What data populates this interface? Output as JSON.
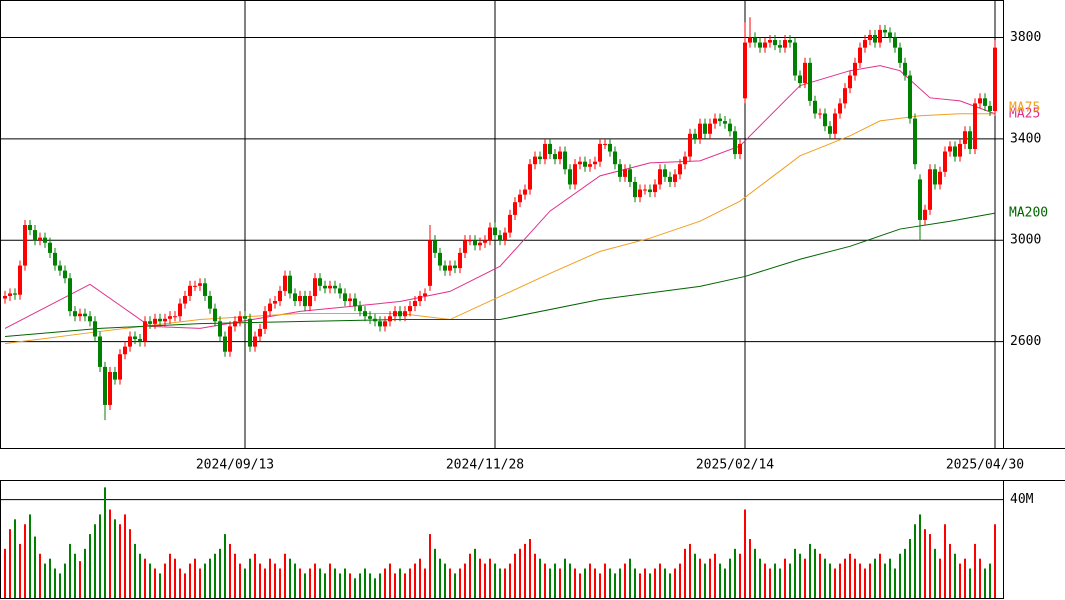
{
  "chart_data": {
    "type": "candlestick",
    "up_color": "#ff0000",
    "down_color": "#008000",
    "ylim": [
      2180,
      3948
    ],
    "yticks": [
      2600,
      3000,
      3400,
      3800
    ],
    "grid": true,
    "xticks": [
      {
        "value": 48,
        "label": "2024/09/13"
      },
      {
        "value": 98,
        "label": "2024/11/28"
      },
      {
        "value": 148,
        "label": "2025/02/14"
      },
      {
        "value": 198,
        "label": "2025/04/30"
      }
    ],
    "open": [
      2770,
      2780,
      2790,
      2785,
      2900,
      3060,
      3040,
      3000,
      3010,
      2990,
      2950,
      2900,
      2880,
      2850,
      2720,
      2700,
      2710,
      2700,
      2680,
      2620,
      2500,
      2350,
      2480,
      2450,
      2550,
      2580,
      2620,
      2610,
      2600,
      2680,
      2670,
      2690,
      2680,
      2690,
      2700,
      2700,
      2750,
      2780,
      2820,
      2820,
      2830,
      2780,
      2730,
      2680,
      2620,
      2560,
      2660,
      2680,
      2700,
      2690,
      2580,
      2620,
      2650,
      2720,
      2750,
      2760,
      2800,
      2860,
      2790,
      2760,
      2780,
      2740,
      2780,
      2850,
      2820,
      2810,
      2820,
      2810,
      2790,
      2760,
      2770,
      2740,
      2720,
      2700,
      2690,
      2680,
      2660,
      2680,
      2700,
      2720,
      2700,
      2720,
      2740,
      2760,
      2780,
      2820,
      3000,
      2950,
      2900,
      2880,
      2900,
      2890,
      2950,
      3000,
      3000,
      2980,
      2990,
      3000,
      3050,
      3020,
      3000,
      3030,
      3100,
      3150,
      3180,
      3200,
      3300,
      3330,
      3320,
      3380,
      3340,
      3320,
      3350,
      3280,
      3220,
      3300,
      3310,
      3290,
      3300,
      3310,
      3380,
      3380,
      3350,
      3300,
      3250,
      3280,
      3230,
      3170,
      3200,
      3200,
      3190,
      3220,
      3280,
      3250,
      3230,
      3260,
      3300,
      3330,
      3420,
      3400,
      3460,
      3420,
      3460,
      3480,
      3470,
      3460,
      3430,
      3340,
      3560,
      3780,
      3800,
      3780,
      3760,
      3780,
      3790,
      3770,
      3760,
      3790,
      3780,
      3650,
      3620,
      3700,
      3550,
      3500,
      3500,
      3450,
      3420,
      3500,
      3540,
      3600,
      3650,
      3700,
      3760,
      3790,
      3810,
      3780,
      3830,
      3820,
      3800,
      3760,
      3700,
      3650,
      3480,
      3240,
      3080,
      3120,
      3280,
      3220,
      3270,
      3350,
      3370,
      3330,
      3380,
      3430,
      3360,
      3540,
      3560,
      3530,
      3510
    ],
    "high": [
      2800,
      2810,
      2810,
      2920,
      3080,
      3080,
      3060,
      3030,
      3030,
      3010,
      2970,
      2920,
      2900,
      2870,
      2740,
      2730,
      2730,
      2720,
      2700,
      2640,
      2520,
      2500,
      2500,
      2570,
      2600,
      2640,
      2640,
      2630,
      2700,
      2700,
      2710,
      2710,
      2710,
      2720,
      2720,
      2770,
      2800,
      2840,
      2840,
      2850,
      2850,
      2800,
      2750,
      2700,
      2640,
      2680,
      2700,
      2720,
      2720,
      2710,
      2640,
      2670,
      2740,
      2770,
      2780,
      2820,
      2880,
      2880,
      2810,
      2800,
      2800,
      2800,
      2870,
      2870,
      2840,
      2840,
      2840,
      2830,
      2810,
      2790,
      2790,
      2760,
      2740,
      2720,
      2710,
      2700,
      2700,
      2720,
      2740,
      2740,
      2740,
      2760,
      2780,
      2800,
      2810,
      3060,
      3020,
      2970,
      2920,
      2920,
      2920,
      2970,
      3020,
      3020,
      3020,
      3010,
      3020,
      3070,
      3070,
      3040,
      3050,
      3120,
      3170,
      3200,
      3220,
      3320,
      3350,
      3350,
      3400,
      3400,
      3360,
      3370,
      3370,
      3300,
      3320,
      3330,
      3330,
      3320,
      3330,
      3400,
      3400,
      3400,
      3370,
      3320,
      3300,
      3300,
      3250,
      3220,
      3220,
      3220,
      3240,
      3300,
      3300,
      3270,
      3280,
      3320,
      3350,
      3440,
      3440,
      3480,
      3480,
      3480,
      3500,
      3500,
      3490,
      3480,
      3450,
      3400,
      3860,
      3880,
      3820,
      3800,
      3800,
      3810,
      3810,
      3790,
      3810,
      3810,
      3800,
      3670,
      3720,
      3720,
      3570,
      3520,
      3520,
      3470,
      3520,
      3560,
      3620,
      3670,
      3720,
      3780,
      3810,
      3830,
      3830,
      3850,
      3850,
      3840,
      3820,
      3780,
      3720,
      3670,
      3500,
      3260,
      3140,
      3300,
      3300,
      3290,
      3370,
      3390,
      3390,
      3400,
      3450,
      3450,
      3560,
      3580,
      3580,
      3550,
      3790
    ],
    "low": [
      2750,
      2760,
      2765,
      2765,
      2880,
      3020,
      2980,
      2980,
      2970,
      2930,
      2880,
      2860,
      2830,
      2700,
      2680,
      2680,
      2680,
      2660,
      2600,
      2480,
      2290,
      2330,
      2430,
      2430,
      2530,
      2560,
      2590,
      2580,
      2580,
      2650,
      2650,
      2660,
      2660,
      2670,
      2680,
      2680,
      2730,
      2760,
      2800,
      2800,
      2760,
      2710,
      2660,
      2600,
      2540,
      2540,
      2640,
      2660,
      2670,
      2560,
      2560,
      2600,
      2630,
      2700,
      2730,
      2740,
      2780,
      2770,
      2740,
      2740,
      2720,
      2720,
      2760,
      2800,
      2790,
      2790,
      2790,
      2770,
      2740,
      2740,
      2720,
      2700,
      2680,
      2670,
      2660,
      2640,
      2640,
      2660,
      2680,
      2680,
      2680,
      2700,
      2720,
      2740,
      2760,
      2800,
      2930,
      2880,
      2860,
      2860,
      2870,
      2870,
      2930,
      2980,
      2960,
      2960,
      2970,
      2980,
      3000,
      2980,
      2980,
      3010,
      3080,
      3130,
      3160,
      3180,
      3280,
      3300,
      3300,
      3320,
      3300,
      3300,
      3260,
      3200,
      3200,
      3280,
      3270,
      3270,
      3280,
      3290,
      3360,
      3330,
      3280,
      3230,
      3230,
      3210,
      3150,
      3150,
      3180,
      3170,
      3170,
      3200,
      3230,
      3210,
      3210,
      3240,
      3280,
      3310,
      3380,
      3380,
      3400,
      3400,
      3440,
      3450,
      3440,
      3410,
      3320,
      3320,
      3540,
      3760,
      3760,
      3740,
      3740,
      3760,
      3750,
      3740,
      3740,
      3760,
      3630,
      3600,
      3600,
      3530,
      3480,
      3480,
      3430,
      3400,
      3400,
      3480,
      3520,
      3580,
      3630,
      3680,
      3740,
      3770,
      3760,
      3760,
      3800,
      3780,
      3740,
      3680,
      3630,
      3460,
      3280,
      3000,
      3060,
      3100,
      3200,
      3200,
      3250,
      3330,
      3310,
      3310,
      3360,
      3340,
      3340,
      3520,
      3510,
      3490,
      3490
    ],
    "close": [
      2780,
      2790,
      2785,
      2900,
      3060,
      3040,
      3000,
      3010,
      2990,
      2950,
      2900,
      2880,
      2850,
      2720,
      2700,
      2710,
      2700,
      2680,
      2620,
      2500,
      2350,
      2480,
      2450,
      2550,
      2580,
      2620,
      2610,
      2600,
      2680,
      2670,
      2690,
      2680,
      2690,
      2700,
      2700,
      2750,
      2780,
      2820,
      2820,
      2830,
      2780,
      2730,
      2680,
      2620,
      2560,
      2660,
      2680,
      2700,
      2690,
      2580,
      2620,
      2650,
      2720,
      2750,
      2760,
      2800,
      2860,
      2790,
      2760,
      2780,
      2740,
      2780,
      2850,
      2820,
      2810,
      2820,
      2810,
      2790,
      2760,
      2770,
      2740,
      2720,
      2700,
      2690,
      2680,
      2660,
      2680,
      2700,
      2720,
      2700,
      2720,
      2740,
      2760,
      2780,
      2790,
      3000,
      2950,
      2900,
      2880,
      2900,
      2890,
      2950,
      3000,
      3000,
      2980,
      2990,
      3000,
      3050,
      3020,
      3000,
      3030,
      3100,
      3150,
      3180,
      3200,
      3300,
      3330,
      3320,
      3380,
      3340,
      3320,
      3350,
      3280,
      3220,
      3300,
      3310,
      3290,
      3300,
      3310,
      3380,
      3380,
      3350,
      3300,
      3250,
      3280,
      3230,
      3170,
      3200,
      3200,
      3190,
      3220,
      3280,
      3250,
      3230,
      3260,
      3300,
      3330,
      3420,
      3400,
      3460,
      3420,
      3460,
      3480,
      3470,
      3460,
      3430,
      3340,
      3380,
      3780,
      3800,
      3780,
      3760,
      3780,
      3790,
      3770,
      3760,
      3790,
      3780,
      3650,
      3620,
      3700,
      3550,
      3500,
      3500,
      3450,
      3420,
      3500,
      3540,
      3600,
      3650,
      3700,
      3760,
      3790,
      3810,
      3780,
      3830,
      3820,
      3800,
      3760,
      3700,
      3650,
      3480,
      3300,
      3080,
      3120,
      3280,
      3220,
      3270,
      3350,
      3370,
      3330,
      3380,
      3430,
      3360,
      3540,
      3560,
      3530,
      3510,
      3760
    ],
    "moving_averages": [
      {
        "name": "MA25",
        "color": "#e0308c",
        "x": [
          0,
          17,
          29,
          39,
          59,
          79,
          89,
          99,
          109,
          119,
          129,
          139,
          147,
          159,
          169,
          175,
          179,
          185,
          191,
          198
        ],
        "values": [
          2652,
          2826,
          2660,
          2652,
          2719,
          2758,
          2798,
          2897,
          3115,
          3254,
          3305,
          3313,
          3372,
          3610,
          3669,
          3689,
          3669,
          3562,
          3550,
          3499
        ]
      },
      {
        "name": "MA75",
        "color": "#f0a020",
        "x": [
          0,
          19,
          39,
          59,
          79,
          89,
          99,
          109,
          119,
          129,
          139,
          147,
          159,
          169,
          175,
          183,
          191,
          198
        ],
        "values": [
          2592,
          2640,
          2687,
          2711,
          2711,
          2687,
          2778,
          2869,
          2956,
          3008,
          3075,
          3154,
          3333,
          3412,
          3471,
          3491,
          3499,
          3499
        ]
      },
      {
        "name": "MA200",
        "color": "#006400",
        "x": [
          0,
          19,
          39,
          59,
          79,
          99,
          119,
          139,
          148,
          159,
          169,
          179,
          189,
          198
        ],
        "values": [
          2620,
          2652,
          2671,
          2679,
          2687,
          2687,
          2766,
          2818,
          2857,
          2925,
          2976,
          3044,
          3075,
          3107
        ]
      }
    ],
    "volume": {
      "ylim": [
        0,
        48
      ],
      "yticks": [
        {
          "value": 40,
          "label": "40M"
        }
      ],
      "values": [
        20,
        28,
        32,
        22,
        30,
        34,
        25,
        18,
        14,
        16,
        12,
        10,
        14,
        22,
        18,
        15,
        20,
        26,
        30,
        34,
        45,
        36,
        32,
        30,
        34,
        28,
        22,
        18,
        16,
        14,
        12,
        10,
        14,
        18,
        16,
        12,
        10,
        14,
        16,
        12,
        14,
        16,
        18,
        20,
        26,
        22,
        18,
        14,
        12,
        16,
        18,
        14,
        12,
        16,
        14,
        12,
        18,
        16,
        14,
        12,
        10,
        12,
        14,
        12,
        10,
        14,
        12,
        10,
        12,
        10,
        8,
        10,
        12,
        10,
        8,
        10,
        12,
        14,
        10,
        12,
        10,
        12,
        14,
        16,
        12,
        26,
        20,
        16,
        14,
        12,
        10,
        12,
        14,
        18,
        20,
        16,
        14,
        16,
        14,
        12,
        12,
        14,
        18,
        20,
        22,
        24,
        18,
        16,
        14,
        12,
        14,
        12,
        16,
        14,
        12,
        10,
        12,
        14,
        12,
        10,
        14,
        12,
        10,
        12,
        14,
        16,
        12,
        10,
        12,
        10,
        12,
        14,
        12,
        10,
        12,
        14,
        20,
        22,
        18,
        16,
        14,
        16,
        18,
        14,
        12,
        16,
        20,
        18,
        36,
        24,
        20,
        16,
        14,
        12,
        14,
        12,
        16,
        14,
        20,
        18,
        16,
        22,
        20,
        18,
        16,
        14,
        12,
        14,
        16,
        18,
        16,
        14,
        12,
        14,
        16,
        18,
        14,
        16,
        12,
        18,
        20,
        24,
        30,
        34,
        28,
        26,
        20,
        16,
        30,
        22,
        18,
        14,
        16,
        12,
        22,
        16,
        12,
        14,
        30
      ]
    }
  }
}
